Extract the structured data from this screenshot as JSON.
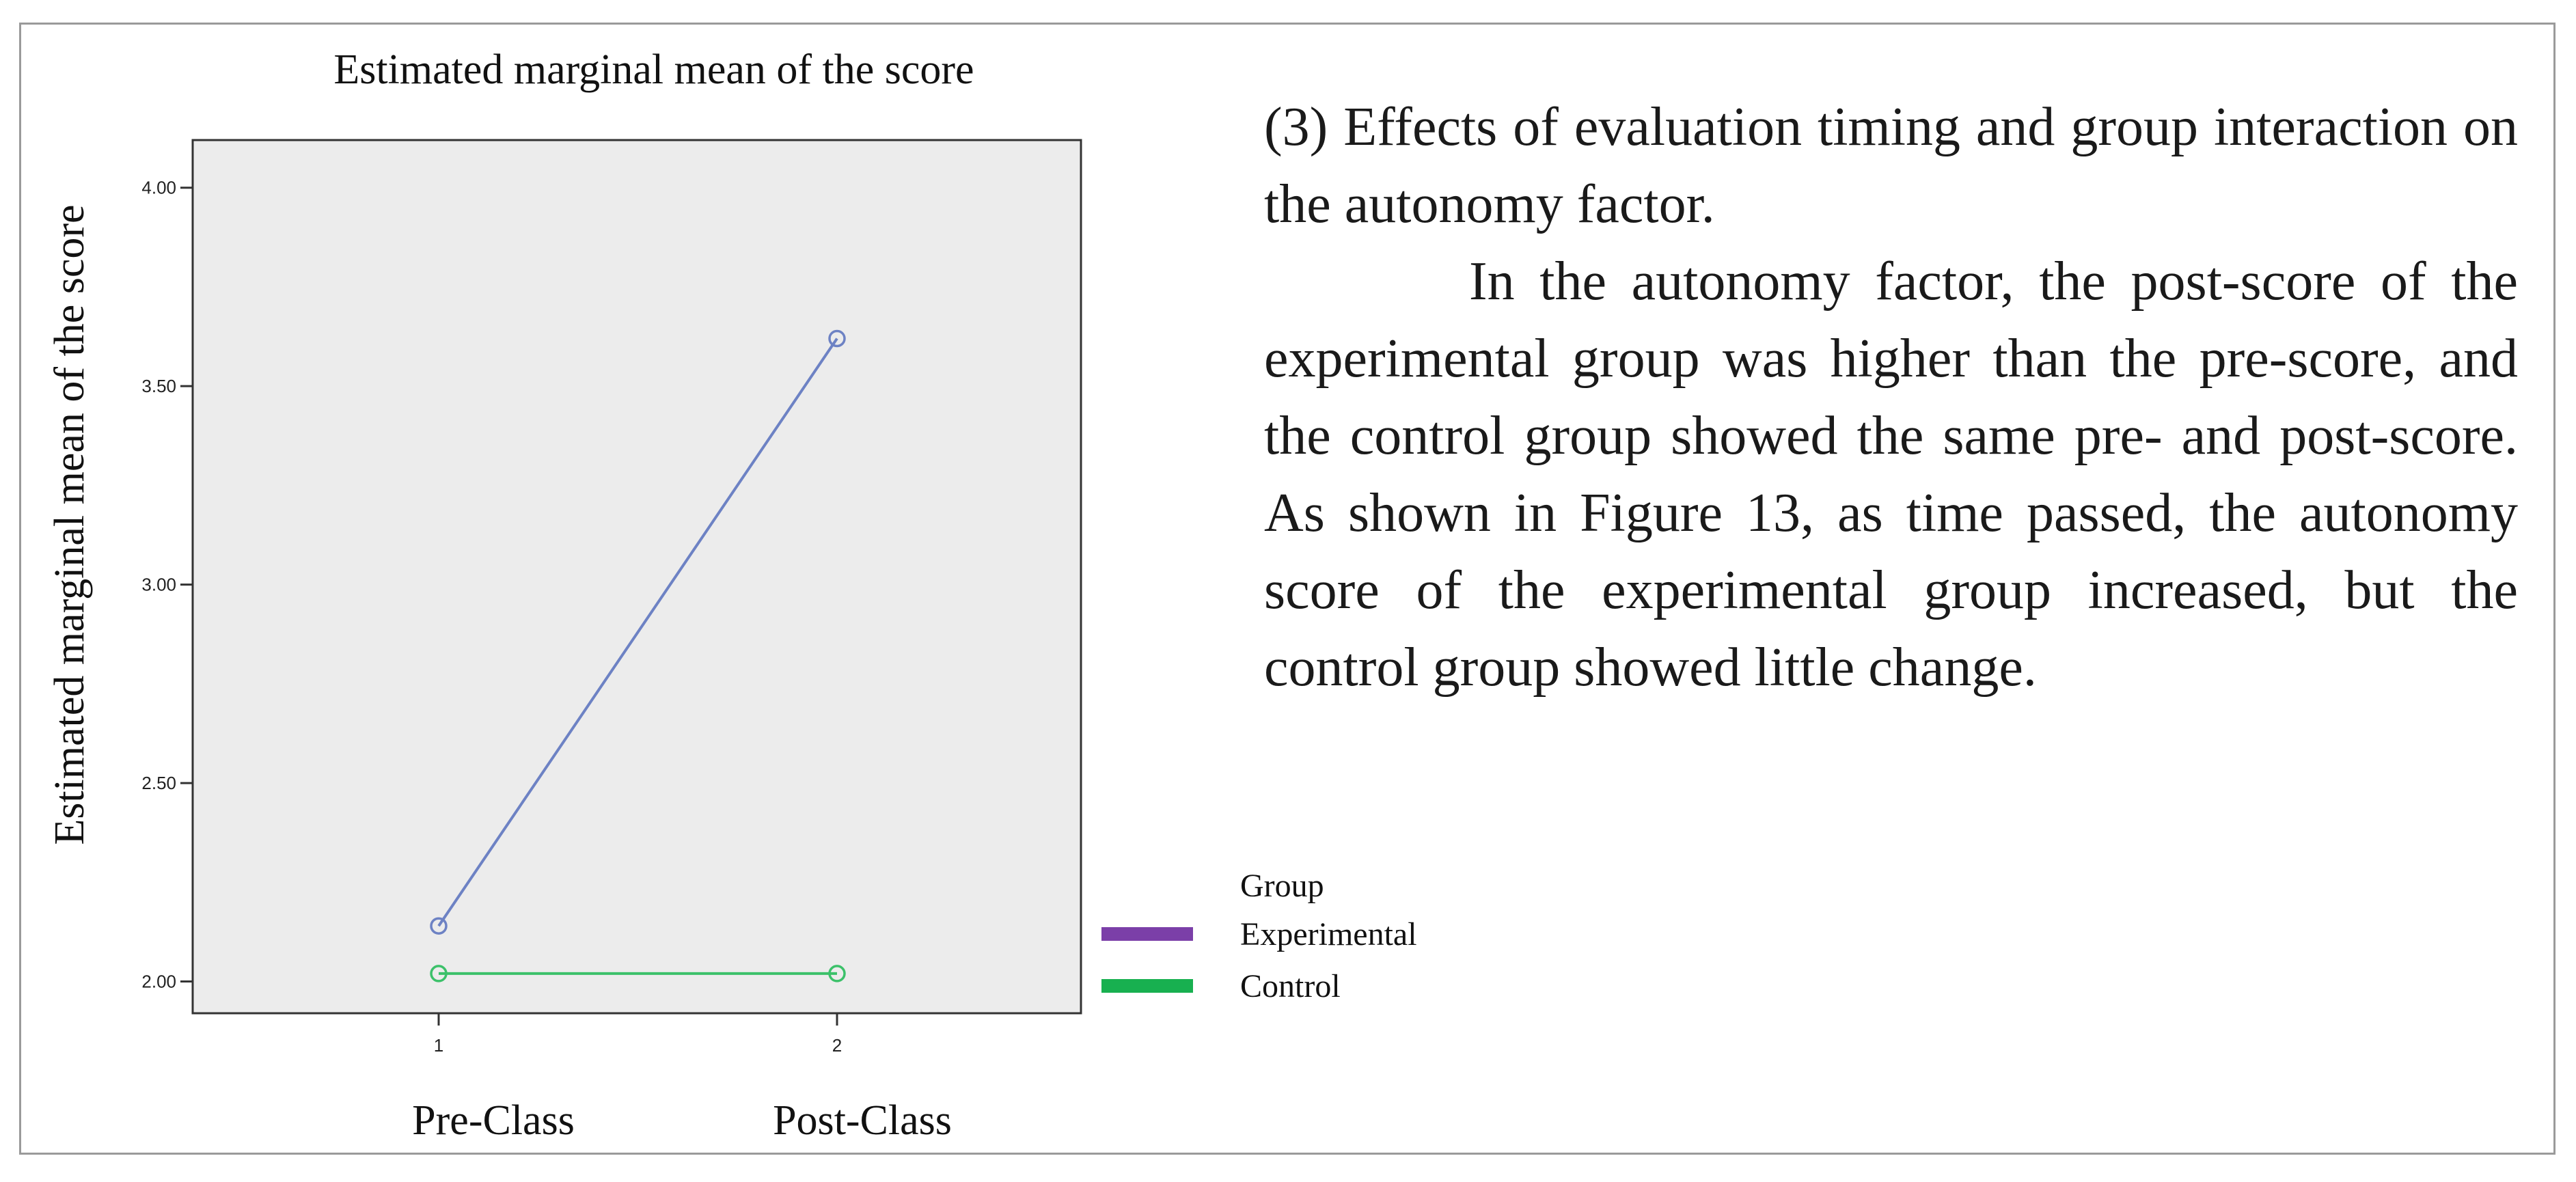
{
  "page": {
    "section_heading": "(3) Effects of evaluation timing and group interaction on the autonomy factor.",
    "paragraph": "In the autonomy factor, the post-score of the experimental group was higher than the pre-score, and the control group showed the same pre- and post-score. As shown in Figure 13, as time passed, the autonomy score of the experimental group increased, but the control group showed little change."
  },
  "chart_data": {
    "type": "line",
    "title": "Estimated marginal mean of the score",
    "xlabel": "",
    "ylabel": "Estimated marginal mean of the score",
    "x": [
      1,
      2
    ],
    "x_tick_labels": [
      "1",
      "2"
    ],
    "categories": [
      "Pre-Class",
      "Post-Class"
    ],
    "ylim": [
      1.92,
      4.12
    ],
    "yticks": [
      2.0,
      2.5,
      3.0,
      3.5,
      4.0
    ],
    "ytick_labels": [
      "2.00",
      "2.50",
      "3.00",
      "3.50",
      "4.00"
    ],
    "grid": false,
    "legend_position": "right",
    "legend_title": "Group",
    "series": [
      {
        "name": "Experimental",
        "values": [
          2.14,
          3.62
        ],
        "line_color": "#6d82c4",
        "legend_color": "#7b3fa8"
      },
      {
        "name": "Control",
        "values": [
          2.02,
          2.02
        ],
        "line_color": "#3cc16a",
        "legend_color": "#18b050"
      }
    ],
    "plot_background": "#ececec"
  }
}
